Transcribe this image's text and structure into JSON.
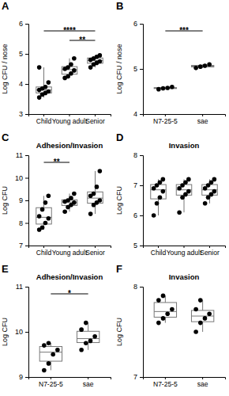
{
  "chart_data": [
    {
      "type": "box",
      "panel": "A",
      "y_label": "Log CFU / nose",
      "categories": [
        "Child",
        "Young adult",
        "Senior"
      ],
      "values": [
        [
          3.55,
          3.65,
          3.7,
          3.75,
          3.8,
          3.85,
          3.9,
          4.05,
          4.55
        ],
        [
          4.2,
          4.25,
          4.35,
          4.45,
          4.5,
          4.55,
          4.65,
          4.85
        ],
        [
          4.55,
          4.65,
          4.7,
          4.75,
          4.8,
          4.85,
          4.9,
          4.95
        ]
      ],
      "ylim": [
        3,
        6
      ],
      "yticks": [
        3,
        4,
        5,
        6
      ],
      "color": "#000000",
      "annotations": [
        {
          "from": 0,
          "to": 2,
          "text": "****"
        },
        {
          "from": 1,
          "to": 2,
          "text": "**"
        }
      ]
    },
    {
      "type": "box",
      "panel": "B",
      "y_label": "Log CFU / nose",
      "categories": [
        "N7-25-5",
        "sae"
      ],
      "values": [
        [
          4.55,
          4.57,
          4.58,
          4.6
        ],
        [
          5.02,
          5.05,
          5.07,
          5.1
        ]
      ],
      "ylim": [
        4,
        6
      ],
      "yticks": [
        4,
        5,
        6
      ],
      "color": "#000000",
      "annotations": [
        {
          "from": 0,
          "to": 1,
          "text": "***"
        }
      ]
    },
    {
      "type": "box",
      "panel": "C",
      "title": "Adhesion/Invasion",
      "y_label": "Log CFU",
      "categories": [
        "Child",
        "Young adult",
        "Senior"
      ],
      "values": [
        [
          7.7,
          7.8,
          8.0,
          8.2,
          8.3,
          8.6,
          8.9,
          9.2
        ],
        [
          8.5,
          8.7,
          8.8,
          8.9,
          8.95,
          9.0,
          9.1,
          9.3
        ],
        [
          8.4,
          8.8,
          8.9,
          9.0,
          9.2,
          9.3,
          9.6,
          10.3
        ]
      ],
      "ylim": [
        7,
        11
      ],
      "yticks": [
        7,
        8,
        9,
        10,
        11
      ],
      "color": "#000000",
      "annotations": [
        {
          "from": 0,
          "to": 1,
          "text": "**"
        }
      ]
    },
    {
      "type": "box",
      "panel": "D",
      "title": "Invasion",
      "y_label": "Log CFU",
      "categories": [
        "Child",
        "Young adult",
        "Senior"
      ],
      "values": [
        [
          6.0,
          6.4,
          6.6,
          6.8,
          6.9,
          7.0,
          7.1,
          7.2
        ],
        [
          6.1,
          6.6,
          6.7,
          6.8,
          6.9,
          7.0,
          7.1,
          7.2
        ],
        [
          6.4,
          6.6,
          6.7,
          6.8,
          6.9,
          7.0,
          7.1,
          7.2
        ]
      ],
      "ylim": [
        5,
        8
      ],
      "yticks": [
        5,
        6,
        7,
        8
      ],
      "color": "#000000"
    },
    {
      "type": "box",
      "panel": "E",
      "title": "Adhesion/Invasion",
      "y_label": "Log CFU",
      "categories": [
        "N7-25-5",
        "sae"
      ],
      "values": [
        [
          9.15,
          9.3,
          9.5,
          9.6,
          9.7,
          9.75
        ],
        [
          9.6,
          9.75,
          9.8,
          9.9,
          10.05,
          10.2
        ]
      ],
      "ylim": [
        9,
        11
      ],
      "yticks": [
        9,
        10,
        11
      ],
      "color": "#000000",
      "annotations": [
        {
          "from": 0,
          "to": 1,
          "text": "*"
        }
      ]
    },
    {
      "type": "box",
      "panel": "F",
      "title": "Invasion",
      "y_label": "Log CFU",
      "categories": [
        "N7-25-5",
        "sae"
      ],
      "values": [
        [
          7.6,
          7.65,
          7.7,
          7.75,
          7.85,
          7.9
        ],
        [
          7.5,
          7.6,
          7.65,
          7.7,
          7.75,
          7.85
        ]
      ],
      "ylim": [
        7,
        8
      ],
      "yticks": [
        7,
        8
      ],
      "color": "#000000"
    }
  ]
}
